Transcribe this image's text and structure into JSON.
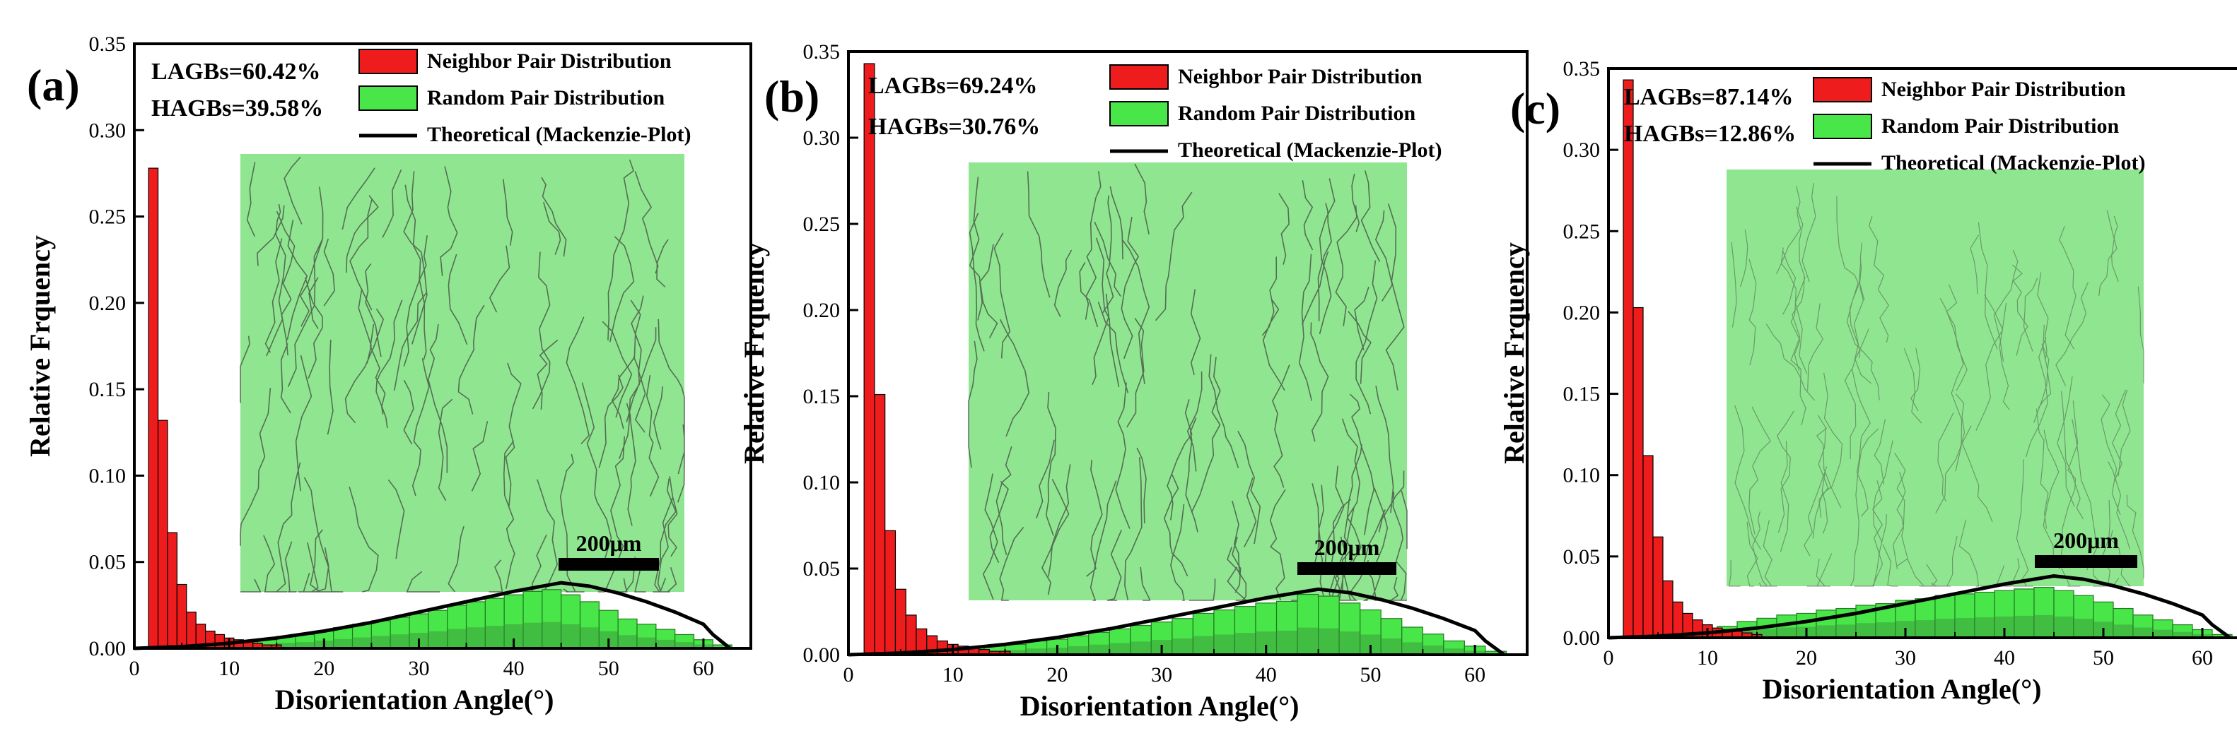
{
  "colors": {
    "neighbor": "#ee1c1c",
    "random": "#49e649",
    "random_dark": "#3a9a3a",
    "theory": "#000000",
    "inset_green": "#7de27d",
    "inset_line": "#3b3b3b"
  },
  "chart_data": [
    {
      "type": "bar",
      "panel_label": "(a)",
      "title": "",
      "xlabel": "Disorientation Angle(°)",
      "ylabel": "Relative Frquency",
      "xlim": [
        0,
        65
      ],
      "ylim": [
        0,
        0.35
      ],
      "xticks": [
        "0",
        "10",
        "20",
        "30",
        "40",
        "50",
        "60"
      ],
      "yticks": [
        "0.00",
        "0.05",
        "0.10",
        "0.15",
        "0.20",
        "0.25",
        "0.30",
        "0.35"
      ],
      "stats": [
        "LAGBs=60.42%",
        "HAGBs=39.58%"
      ],
      "legend": [
        "Neighbor Pair Distribution",
        "Random Pair Distribution",
        "Theoretical (Mackenzie-Plot)"
      ],
      "scale_bar_label": "200μm",
      "bin_width": 1,
      "series": [
        {
          "name": "Neighbor Pair Distribution",
          "x": [
            2,
            3,
            4,
            5,
            6,
            7,
            8,
            9,
            10,
            11,
            12,
            13,
            14,
            15
          ],
          "values": [
            0.278,
            0.132,
            0.067,
            0.037,
            0.021,
            0.014,
            0.01,
            0.008,
            0.006,
            0.005,
            0.004,
            0.003,
            0.002,
            0.002
          ]
        },
        {
          "name": "Random Pair Distribution",
          "x": [
            10,
            12,
            14,
            16,
            18,
            20,
            22,
            24,
            26,
            28,
            30,
            32,
            34,
            36,
            38,
            40,
            42,
            44,
            46,
            48,
            50,
            52,
            54,
            56,
            58,
            60,
            62
          ],
          "values": [
            0.002,
            0.004,
            0.005,
            0.007,
            0.008,
            0.01,
            0.012,
            0.014,
            0.016,
            0.018,
            0.02,
            0.022,
            0.025,
            0.027,
            0.029,
            0.031,
            0.033,
            0.034,
            0.031,
            0.027,
            0.022,
            0.017,
            0.014,
            0.011,
            0.008,
            0.005,
            0.002
          ]
        },
        {
          "name": "Theoretical (Mackenzie-Plot)",
          "x": [
            0,
            5,
            10,
            15,
            20,
            25,
            30,
            35,
            40,
            45,
            48,
            51,
            54,
            57,
            60,
            61,
            62.8
          ],
          "values": [
            0.0,
            0.001,
            0.003,
            0.006,
            0.01,
            0.015,
            0.021,
            0.027,
            0.033,
            0.038,
            0.036,
            0.032,
            0.027,
            0.021,
            0.014,
            0.008,
            0.0
          ]
        }
      ]
    },
    {
      "type": "bar",
      "panel_label": "(b)",
      "title": "",
      "xlabel": "Disorientation Angle(°)",
      "ylabel": "Relative Frquency",
      "xlim": [
        0,
        65
      ],
      "ylim": [
        0,
        0.35
      ],
      "xticks": [
        "0",
        "10",
        "20",
        "30",
        "40",
        "50",
        "60"
      ],
      "yticks": [
        "0.00",
        "0.05",
        "0.10",
        "0.15",
        "0.20",
        "0.25",
        "0.30",
        "0.35"
      ],
      "stats": [
        "LAGBs=69.24%",
        "HAGBs=30.76%"
      ],
      "legend": [
        "Neighbor Pair Distribution",
        "Random Pair Distribution",
        "Theoretical (Mackenzie-Plot)"
      ],
      "scale_bar_label": "200μm",
      "bin_width": 1,
      "series": [
        {
          "name": "Neighbor Pair Distribution",
          "x": [
            2,
            3,
            4,
            5,
            6,
            7,
            8,
            9,
            10,
            11,
            12,
            13,
            14,
            15
          ],
          "values": [
            0.343,
            0.151,
            0.072,
            0.038,
            0.023,
            0.015,
            0.011,
            0.008,
            0.006,
            0.005,
            0.004,
            0.003,
            0.002,
            0.002
          ]
        },
        {
          "name": "Random Pair Distribution",
          "x": [
            10,
            12,
            14,
            16,
            18,
            20,
            22,
            24,
            26,
            28,
            30,
            32,
            34,
            36,
            38,
            40,
            42,
            44,
            46,
            48,
            50,
            52,
            54,
            56,
            58,
            60,
            62
          ],
          "values": [
            0.002,
            0.004,
            0.005,
            0.006,
            0.008,
            0.009,
            0.011,
            0.013,
            0.015,
            0.017,
            0.019,
            0.021,
            0.024,
            0.026,
            0.028,
            0.03,
            0.031,
            0.035,
            0.034,
            0.03,
            0.026,
            0.021,
            0.016,
            0.012,
            0.008,
            0.005,
            0.002
          ]
        },
        {
          "name": "Theoretical (Mackenzie-Plot)",
          "x": [
            0,
            5,
            10,
            15,
            20,
            25,
            30,
            35,
            40,
            45,
            48,
            51,
            54,
            57,
            60,
            61,
            62.8
          ],
          "values": [
            0.0,
            0.001,
            0.003,
            0.006,
            0.01,
            0.015,
            0.021,
            0.027,
            0.033,
            0.038,
            0.036,
            0.032,
            0.027,
            0.021,
            0.014,
            0.008,
            0.0
          ]
        }
      ]
    },
    {
      "type": "bar",
      "panel_label": "(c)",
      "title": "",
      "xlabel": "Disorientation Angle(°)",
      "ylabel": "Relative Frquency",
      "xlim": [
        0,
        65
      ],
      "ylim": [
        0,
        0.35
      ],
      "xticks": [
        "0",
        "10",
        "20",
        "30",
        "40",
        "50",
        "60"
      ],
      "yticks": [
        "0.00",
        "0.05",
        "0.10",
        "0.15",
        "0.20",
        "0.25",
        "0.30",
        "0.35"
      ],
      "stats": [
        "LAGBs=87.14%",
        "HAGBs=12.86%"
      ],
      "legend": [
        "Neighbor Pair Distribution",
        "Random Pair Distribution",
        "Theoretical (Mackenzie-Plot)"
      ],
      "scale_bar_label": "200μm",
      "bin_width": 1,
      "series": [
        {
          "name": "Neighbor Pair Distribution",
          "x": [
            2,
            3,
            4,
            5,
            6,
            7,
            8,
            9,
            10,
            11,
            12,
            13,
            14,
            15
          ],
          "values": [
            0.343,
            0.203,
            0.112,
            0.062,
            0.035,
            0.022,
            0.015,
            0.011,
            0.008,
            0.006,
            0.005,
            0.004,
            0.003,
            0.002
          ]
        },
        {
          "name": "Random Pair Distribution",
          "x": [
            10,
            12,
            14,
            16,
            18,
            20,
            22,
            24,
            26,
            28,
            30,
            32,
            34,
            36,
            38,
            40,
            42,
            44,
            46,
            48,
            50,
            52,
            54,
            56,
            58,
            60,
            62
          ],
          "values": [
            0.003,
            0.007,
            0.01,
            0.012,
            0.014,
            0.015,
            0.017,
            0.018,
            0.02,
            0.021,
            0.023,
            0.024,
            0.026,
            0.027,
            0.028,
            0.029,
            0.03,
            0.031,
            0.029,
            0.026,
            0.022,
            0.018,
            0.014,
            0.011,
            0.008,
            0.005,
            0.002
          ]
        },
        {
          "name": "Theoretical (Mackenzie-Plot)",
          "x": [
            0,
            5,
            10,
            15,
            20,
            25,
            30,
            35,
            40,
            45,
            48,
            51,
            54,
            57,
            60,
            61,
            62.8
          ],
          "values": [
            0.0,
            0.001,
            0.003,
            0.006,
            0.01,
            0.015,
            0.021,
            0.027,
            0.033,
            0.038,
            0.036,
            0.032,
            0.027,
            0.021,
            0.014,
            0.008,
            0.0
          ]
        }
      ]
    }
  ]
}
